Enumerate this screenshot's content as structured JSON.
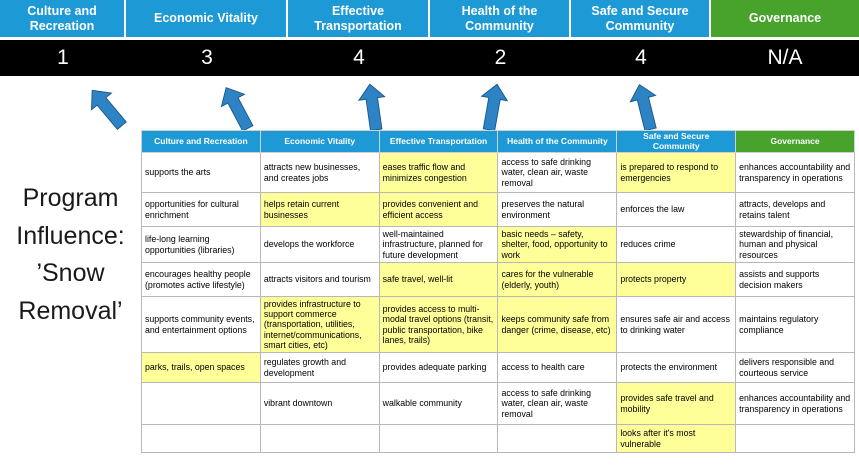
{
  "title": {
    "lines": [
      "Program",
      "Influence:",
      "’Snow",
      "Removal’"
    ]
  },
  "colors": {
    "pillar_blue": "#1D9AD6",
    "governance_green": "#47A32B",
    "highlight_yellow": "#FFFF99",
    "score_band": "#000000",
    "arrow_blue": "#2E83C4"
  },
  "pillars": [
    {
      "name": "Culture and Recreation",
      "score": "1",
      "theme": "blue"
    },
    {
      "name": "Economic Vitality",
      "score": "3",
      "theme": "blue"
    },
    {
      "name": "Effective Transportation",
      "score": "4",
      "theme": "blue"
    },
    {
      "name": "Health of the Community",
      "score": "2",
      "theme": "blue"
    },
    {
      "name": "Safe and Secure Community",
      "score": "4",
      "theme": "blue"
    },
    {
      "name": "Governance",
      "score": "N/A",
      "theme": "green"
    }
  ],
  "table": {
    "headers": [
      {
        "label": "Culture and Recreation",
        "theme": "blue"
      },
      {
        "label": "Economic Vitality",
        "theme": "blue"
      },
      {
        "label": "Effective Transportation",
        "theme": "blue"
      },
      {
        "label": "Health of the Community",
        "theme": "blue"
      },
      {
        "label": "Safe and Secure Community",
        "theme": "blue"
      },
      {
        "label": "Governance",
        "theme": "green"
      }
    ],
    "rows": [
      {
        "cells": [
          {
            "text": "supports the arts",
            "highlight": false
          },
          {
            "text": "attracts new businesses, and creates jobs",
            "highlight": false
          },
          {
            "text": "eases traffic flow and minimizes congestion",
            "highlight": true
          },
          {
            "text": "access to safe drinking water, clean air, waste removal",
            "highlight": false
          },
          {
            "text": "is prepared to respond to emergencies",
            "highlight": true
          },
          {
            "text": "enhances accountability and transparency in operations",
            "highlight": false
          }
        ]
      },
      {
        "cells": [
          {
            "text": "opportunities for cultural enrichment",
            "highlight": false
          },
          {
            "text": "helps retain current businesses",
            "highlight": true
          },
          {
            "text": "provides convenient and efficient access",
            "highlight": true
          },
          {
            "text": "preserves the natural environment",
            "highlight": false
          },
          {
            "text": "enforces the law",
            "highlight": false
          },
          {
            "text": "attracts, develops and retains talent",
            "highlight": false
          }
        ]
      },
      {
        "cells": [
          {
            "text": "life-long learning opportunities (libraries)",
            "highlight": false
          },
          {
            "text": "develops the workforce",
            "highlight": false
          },
          {
            "text": "well-maintained infrastructure, planned for future development",
            "highlight": false
          },
          {
            "text": "basic needs – safety, shelter, food, opportunity to work",
            "highlight": true
          },
          {
            "text": "reduces crime",
            "highlight": false
          },
          {
            "text": "stewardship of financial, human and physical resources",
            "highlight": false
          }
        ]
      },
      {
        "cells": [
          {
            "text": "encourages healthy people (promotes active lifestyle)",
            "highlight": false
          },
          {
            "text": "attracts visitors and tourism",
            "highlight": false
          },
          {
            "text": "safe travel, well-lit",
            "highlight": true
          },
          {
            "text": "cares for the vulnerable (elderly, youth)",
            "highlight": true
          },
          {
            "text": "protects property",
            "highlight": true
          },
          {
            "text": "assists and supports decision makers",
            "highlight": false
          }
        ]
      },
      {
        "cells": [
          {
            "text": "supports community events, and entertainment options",
            "highlight": false
          },
          {
            "text": "provides infrastructure to support commerce (transportation, utilities, internet/communications, smart cities, etc)",
            "highlight": true
          },
          {
            "text": "provides access to multi-modal travel options (transit, public transportation, bike lanes, trails)",
            "highlight": true
          },
          {
            "text": "keeps community safe from danger (crime, disease, etc)",
            "highlight": true
          },
          {
            "text": "ensures safe air and access to drinking water",
            "highlight": false
          },
          {
            "text": "maintains regulatory compliance",
            "highlight": false
          }
        ]
      },
      {
        "cells": [
          {
            "text": "parks, trails, open spaces",
            "highlight": true
          },
          {
            "text": "regulates growth and development",
            "highlight": false
          },
          {
            "text": "provides adequate parking",
            "highlight": false
          },
          {
            "text": "access to health care",
            "highlight": false
          },
          {
            "text": "protects the environment",
            "highlight": false
          },
          {
            "text": "delivers responsible and courteous service",
            "highlight": false
          }
        ]
      },
      {
        "cells": [
          {
            "text": "",
            "highlight": false
          },
          {
            "text": "vibrant downtown",
            "highlight": false
          },
          {
            "text": "walkable community",
            "highlight": false
          },
          {
            "text": "access to safe drinking water, clean air, waste removal",
            "highlight": false
          },
          {
            "text": "provides safe travel and mobility",
            "highlight": true
          },
          {
            "text": "enhances accountability and transparency in operations",
            "highlight": false
          }
        ]
      },
      {
        "cells": [
          {
            "text": "",
            "highlight": false
          },
          {
            "text": "",
            "highlight": false
          },
          {
            "text": "",
            "highlight": false
          },
          {
            "text": "",
            "highlight": false
          },
          {
            "text": "looks after it's most vulnerable",
            "highlight": true
          },
          {
            "text": "",
            "highlight": false
          }
        ]
      }
    ]
  }
}
